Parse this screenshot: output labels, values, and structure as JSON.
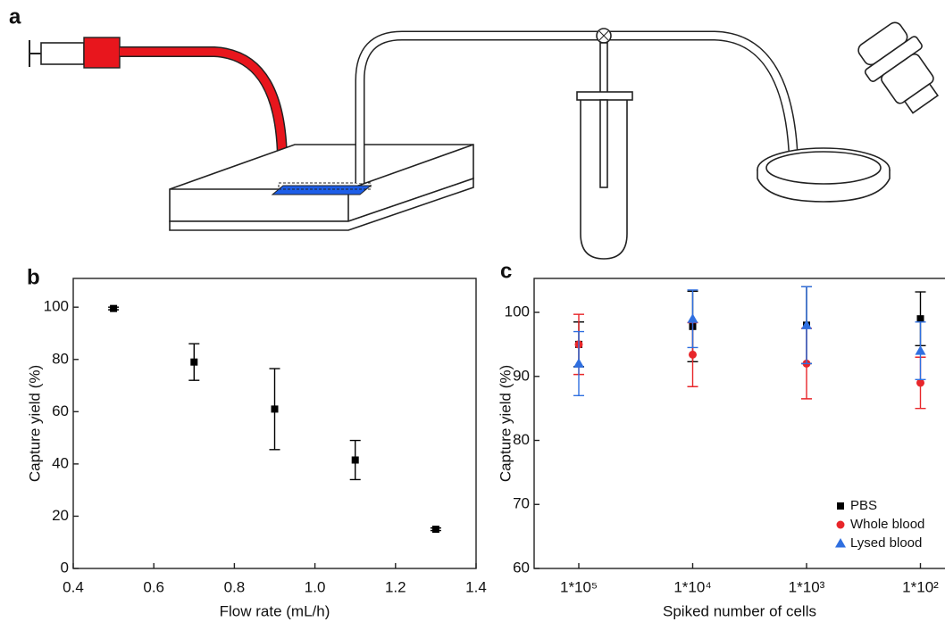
{
  "schematic_label": "a",
  "chart_data": [
    {
      "type": "scatter",
      "label": "b",
      "x_label": "Flow rate (mL/h)",
      "y_label": "Capture yield (%)",
      "x": [
        0.5,
        0.7,
        0.9,
        1.1,
        1.3
      ],
      "values": [
        99.5,
        79,
        61,
        41.5,
        15
      ],
      "errors": [
        0.5,
        7,
        15.5,
        7.5,
        0.5
      ],
      "color": "#000000",
      "marker": "square",
      "xlim": [
        0.4,
        1.4
      ],
      "xticks": [
        0.4,
        0.6,
        0.8,
        {
          "value": 1,
          "label": "1.0"
        },
        1.2,
        1.4
      ],
      "ylim": [
        0,
        111
      ],
      "yticks": [
        0,
        20,
        40,
        60,
        80,
        100
      ]
    },
    {
      "type": "scatter",
      "label": "c",
      "x_label": "Spiked number of cells",
      "y_label": "Capture yield (%)",
      "categories": [
        "1*10⁵",
        "1*10⁴",
        "1*10³",
        "1*10²"
      ],
      "series": [
        {
          "name": "PBS",
          "color": "#000000",
          "marker": "square",
          "values": [
            95,
            97.8,
            98,
            99
          ],
          "errors": [
            3.5,
            5.5,
            6,
            4.2
          ]
        },
        {
          "name": "Whole blood",
          "color": "#e8262a",
          "marker": "circle",
          "values": [
            95,
            93.4,
            92,
            89
          ],
          "errors": [
            4.7,
            5,
            5.5,
            4
          ]
        },
        {
          "name": "Lysed blood",
          "color": "#2f6fe0",
          "marker": "triangle",
          "values": [
            92,
            99,
            98,
            94
          ],
          "errors": [
            5,
            4.5,
            6,
            4.5
          ]
        }
      ],
      "ylim": [
        60,
        105.3
      ],
      "yticks": [
        60,
        70,
        80,
        90,
        100
      ],
      "legend": "lower right"
    }
  ]
}
